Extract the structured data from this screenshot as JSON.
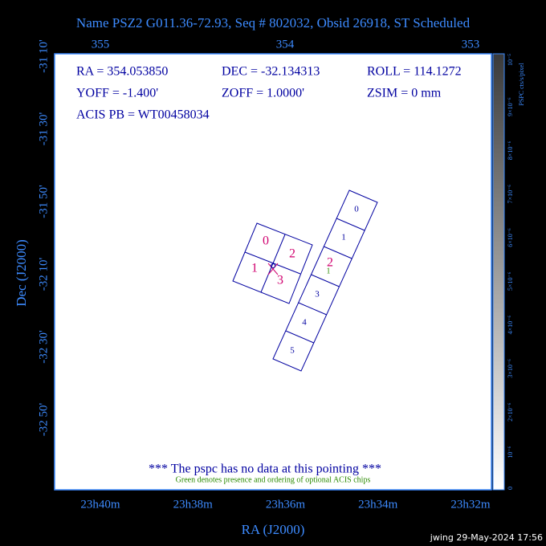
{
  "title": "Name PSZ2 G011.36-72.93, Seq # 802032, Obsid 26918, ST Scheduled",
  "top_axis": {
    "ticks": [
      "355",
      "354",
      "353"
    ]
  },
  "left_axis": {
    "title": "Dec (J2000)",
    "ticks": [
      "-31 10'",
      "-31 30'",
      "-31 50'",
      "-32 10'",
      "-32 30'",
      "-32 50'"
    ]
  },
  "bottom_axis": {
    "title": "RA (J2000)",
    "ticks": [
      "23h40m",
      "23h38m",
      "23h36m",
      "23h34m",
      "23h32m"
    ]
  },
  "info": [
    "RA = 354.053850",
    "DEC = -32.134313",
    "ROLL = 114.1272",
    "YOFF =  -1.400'",
    "ZOFF =  1.0000'",
    "ZSIM = 0 mm",
    "ACIS PB = WT00458034"
  ],
  "acis_i": [
    "0",
    "1",
    "2",
    "3"
  ],
  "acis_s": [
    "0",
    "1",
    "2",
    "3",
    "4",
    "5"
  ],
  "optional_chip": "1",
  "message": "*** The pspc has no data at this pointing ***",
  "note": "Green denotes presence and ordering of optional ACIS chips",
  "colorbar": {
    "title": "PSPC cts/s/pixel",
    "ticks": [
      "0",
      "10⁻⁶",
      "2×10⁻⁶",
      "3×10⁻⁶",
      "4×10⁻⁶",
      "5×10⁻⁶",
      "6×10⁻⁶",
      "7×10⁻⁶",
      "8×10⁻⁶",
      "9×10⁻⁶",
      "10⁻⁵"
    ]
  },
  "footer": "jwing 29-May-2024 17:56"
}
